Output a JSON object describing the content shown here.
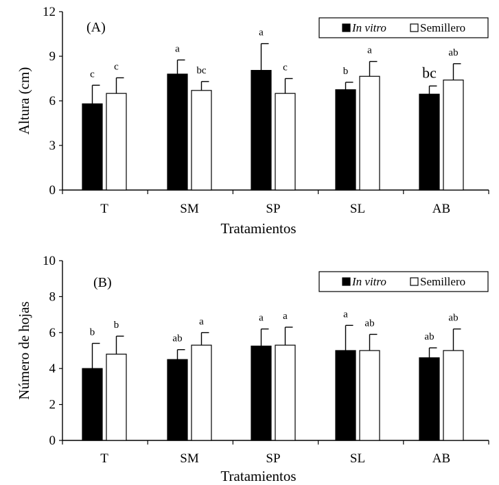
{
  "chart_data": [
    {
      "type": "bar",
      "panel_label": "(A)",
      "xlabel": "Tratamientos",
      "ylabel": "Altura (cm)",
      "ylim": [
        0,
        12
      ],
      "yticks": [
        "0",
        "3",
        "6",
        "9",
        "12"
      ],
      "categories": [
        "T",
        "SM",
        "SP",
        "SL",
        "AB"
      ],
      "legend_position": "top-right",
      "series": [
        {
          "name": "In vitro",
          "color": "#000000",
          "values": [
            5.8,
            7.8,
            8.05,
            6.75,
            6.45
          ],
          "errors": [
            1.25,
            0.95,
            1.8,
            0.5,
            0.55
          ],
          "labels": [
            "c",
            "a",
            "a",
            "b",
            "bc"
          ]
        },
        {
          "name": "Semillero",
          "color": "#ffffff",
          "values": [
            6.5,
            6.7,
            6.5,
            7.65,
            7.4
          ],
          "errors": [
            1.05,
            0.6,
            1.0,
            1.0,
            1.1
          ],
          "labels": [
            "c",
            "bc",
            "c",
            "a",
            "ab"
          ]
        }
      ]
    },
    {
      "type": "bar",
      "panel_label": "(B)",
      "xlabel": "Tratamientos",
      "ylabel": "Número de hojas",
      "ylim": [
        0,
        10
      ],
      "yticks": [
        "0",
        "2",
        "4",
        "6",
        "8",
        "10"
      ],
      "categories": [
        "T",
        "SM",
        "SP",
        "SL",
        "AB"
      ],
      "legend_position": "top-right",
      "series": [
        {
          "name": "In vitro",
          "color": "#000000",
          "values": [
            4.0,
            4.5,
            5.25,
            5.0,
            4.6
          ],
          "errors": [
            1.4,
            0.55,
            0.95,
            1.4,
            0.55
          ],
          "labels": [
            "b",
            "ab",
            "a",
            "a",
            "ab"
          ]
        },
        {
          "name": "Semillero",
          "color": "#ffffff",
          "values": [
            4.8,
            5.3,
            5.3,
            5.0,
            5.0
          ],
          "errors": [
            1.0,
            0.7,
            1.0,
            0.9,
            1.2
          ],
          "labels": [
            "b",
            "a",
            "a",
            "ab",
            "ab"
          ]
        }
      ]
    }
  ]
}
